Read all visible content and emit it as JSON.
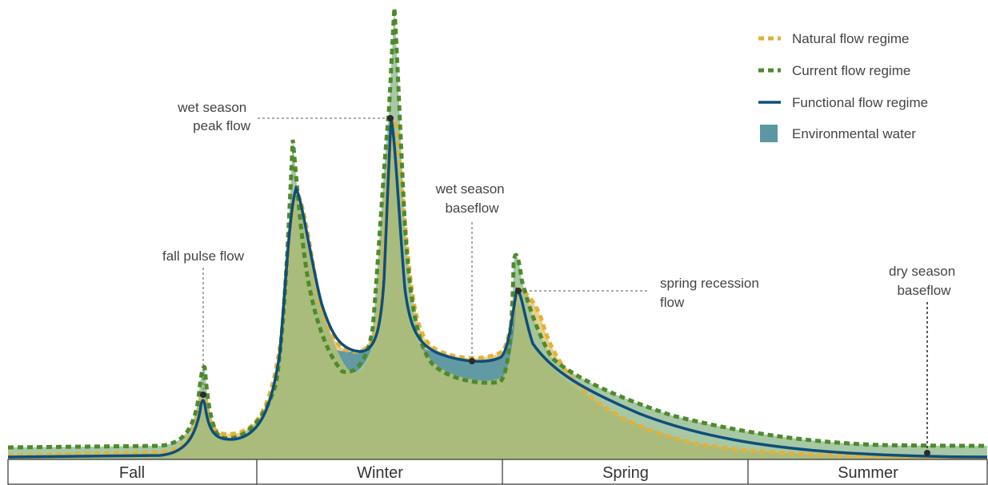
{
  "colors": {
    "natural": "#E3B13A",
    "current": "#4E8A2C",
    "functional": "#0E4E7C",
    "environmental_water": "#5A97A3",
    "natural_fill": "#E8D08C",
    "current_fill": "#9DC29A",
    "base_fill": "#A9BC7C"
  },
  "legend": {
    "natural": "Natural flow regime",
    "current": "Current flow regime",
    "functional": "Functional flow regime",
    "environmental": "Environmental water"
  },
  "annotations": {
    "fall_pulse": [
      "fall pulse flow"
    ],
    "wet_peak": [
      "wet season",
      "peak flow"
    ],
    "wet_baseflow": [
      "wet season",
      "baseflow"
    ],
    "spring_recession": [
      "spring recession",
      "flow"
    ],
    "dry_baseflow": [
      "dry season",
      "baseflow"
    ]
  },
  "seasons": [
    "Fall",
    "Winter",
    "Spring",
    "Summer"
  ]
}
